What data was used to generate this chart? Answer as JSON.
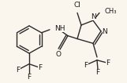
{
  "bg_color": "#faf6ee",
  "bond_color": "#2a2a2a",
  "text_color": "#1a1a1a",
  "bond_width": 1.0,
  "font_size": 6.5,
  "fig_width": 1.61,
  "fig_height": 1.06,
  "dpi": 100,
  "xlim": [
    0,
    161
  ],
  "ylim": [
    0,
    106
  ]
}
